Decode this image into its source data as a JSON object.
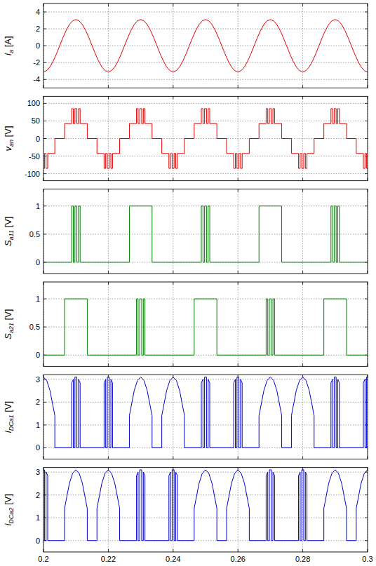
{
  "chart_data": [
    {
      "type": "line",
      "ylabel": "ia [A]",
      "color": "#e00000",
      "grid": true,
      "tick_labels": "y",
      "xlim": [
        0.2,
        0.3
      ],
      "xticks": [
        0.2,
        0.22,
        0.24,
        0.26,
        0.28,
        0.3
      ],
      "ylim": [
        -5,
        5
      ],
      "yticks": [
        -4,
        -2,
        0,
        2,
        4
      ],
      "x": [
        0.2,
        0.201,
        0.202,
        0.203,
        0.204,
        0.205,
        0.206,
        0.207,
        0.208,
        0.209,
        0.21,
        0.211,
        0.212,
        0.213,
        0.214,
        0.215,
        0.216,
        0.217,
        0.218,
        0.219,
        0.22,
        0.221,
        0.222,
        0.223,
        0.224,
        0.225,
        0.226,
        0.227,
        0.228,
        0.229,
        0.23,
        0.231,
        0.232,
        0.233,
        0.234,
        0.235,
        0.236,
        0.237,
        0.238,
        0.239,
        0.24,
        0.241,
        0.242,
        0.243,
        0.244,
        0.245,
        0.246,
        0.247,
        0.248,
        0.249,
        0.25,
        0.251,
        0.252,
        0.253,
        0.254,
        0.255,
        0.256,
        0.257,
        0.258,
        0.259,
        0.26,
        0.261,
        0.262,
        0.263,
        0.264,
        0.265,
        0.266,
        0.267,
        0.268,
        0.269,
        0.27,
        0.271,
        0.272,
        0.273,
        0.274,
        0.275,
        0.276,
        0.277,
        0.278,
        0.279,
        0.28,
        0.281,
        0.282,
        0.283,
        0.284,
        0.285,
        0.286,
        0.287,
        0.288,
        0.289,
        0.29,
        0.291,
        0.292,
        0.293,
        0.294,
        0.295,
        0.296,
        0.297,
        0.298,
        0.299,
        0.3
      ],
      "values": [
        -3.1,
        -2.95,
        -2.51,
        -1.82,
        -0.96,
        0,
        0.96,
        1.82,
        2.51,
        2.95,
        3.1,
        2.95,
        2.51,
        1.82,
        0.96,
        0,
        -0.96,
        -1.82,
        -2.51,
        -2.95,
        -3.1,
        -2.95,
        -2.51,
        -1.82,
        -0.96,
        0,
        0.96,
        1.82,
        2.51,
        2.95,
        3.1,
        2.95,
        2.51,
        1.82,
        0.96,
        0,
        -0.96,
        -1.82,
        -2.51,
        -2.95,
        -3.1,
        -2.95,
        -2.51,
        -1.82,
        -0.96,
        0,
        0.96,
        1.82,
        2.51,
        2.95,
        3.1,
        2.95,
        2.51,
        1.82,
        0.96,
        0,
        -0.96,
        -1.82,
        -2.51,
        -2.95,
        -3.1,
        -2.95,
        -2.51,
        -1.82,
        -0.96,
        0,
        0.96,
        1.82,
        2.51,
        2.95,
        3.1,
        2.95,
        2.51,
        1.82,
        0.96,
        0,
        -0.96,
        -1.82,
        -2.51,
        -2.95,
        -3.1,
        -2.95,
        -2.51,
        -1.82,
        -0.96,
        0,
        0.96,
        1.82,
        2.51,
        2.95,
        3.1,
        2.95,
        2.51,
        1.82,
        0.96,
        0,
        -0.96,
        -1.82,
        -2.51,
        -2.95,
        -3.1
      ]
    },
    {
      "type": "line",
      "line_style": "steps",
      "ylabel": "van [V]",
      "color": "#e00000",
      "grid": true,
      "tick_labels": "y",
      "xlim": [
        0.2,
        0.3
      ],
      "xticks": [
        0.2,
        0.22,
        0.24,
        0.26,
        0.28,
        0.3
      ],
      "ylim": [
        -120,
        120
      ],
      "yticks": [
        -100,
        -50,
        0,
        50,
        100
      ],
      "x": [
        0.2,
        0.2003,
        0.2008,
        0.2013,
        0.2035,
        0.2065,
        0.2087,
        0.2092,
        0.2097,
        0.2103,
        0.2108,
        0.2113,
        0.2135,
        0.2165,
        0.2187,
        0.2192,
        0.2197,
        0.2203,
        0.2208,
        0.2213,
        0.2235,
        0.2265,
        0.2287,
        0.2292,
        0.2297,
        0.2303,
        0.2308,
        0.2313,
        0.2335,
        0.2365,
        0.2387,
        0.2392,
        0.2397,
        0.2403,
        0.2408,
        0.2413,
        0.2435,
        0.2465,
        0.2487,
        0.2492,
        0.2497,
        0.2503,
        0.2508,
        0.2513,
        0.2535,
        0.2565,
        0.2587,
        0.2592,
        0.2597,
        0.2603,
        0.2608,
        0.2613,
        0.2635,
        0.2665,
        0.2687,
        0.2692,
        0.2697,
        0.2703,
        0.2708,
        0.2713,
        0.2735,
        0.2765,
        0.2787,
        0.2792,
        0.2797,
        0.2803,
        0.2808,
        0.2813,
        0.2835,
        0.2865,
        0.2887,
        0.2892,
        0.2897,
        0.2903,
        0.2908,
        0.2913,
        0.2935,
        0.2965,
        0.2987,
        0.2992,
        0.2997,
        0.3
      ],
      "values": [
        -85,
        -42.5,
        -85,
        -42.5,
        0,
        42.5,
        85,
        42.5,
        85,
        42.5,
        85,
        42.5,
        0,
        -42.5,
        -85,
        -42.5,
        -85,
        -42.5,
        -85,
        -42.5,
        0,
        42.5,
        85,
        42.5,
        85,
        42.5,
        85,
        42.5,
        0,
        -42.5,
        -85,
        -42.5,
        -85,
        -42.5,
        -85,
        -42.5,
        0,
        42.5,
        85,
        42.5,
        85,
        42.5,
        85,
        42.5,
        0,
        -42.5,
        -85,
        -42.5,
        -85,
        -42.5,
        -85,
        -42.5,
        0,
        42.5,
        85,
        42.5,
        85,
        42.5,
        85,
        42.5,
        0,
        -42.5,
        -85,
        -42.5,
        -85,
        -42.5,
        -85,
        -42.5,
        0,
        42.5,
        85,
        42.5,
        85,
        42.5,
        85,
        42.5,
        0,
        -42.5,
        -85,
        -42.5,
        -85,
        -85
      ]
    },
    {
      "type": "line",
      "line_style": "steps",
      "ylabel": "Sa11 [V]",
      "color": "#008000",
      "grid": true,
      "tick_labels": "y",
      "xlim": [
        0.2,
        0.3
      ],
      "xticks": [
        0.2,
        0.22,
        0.24,
        0.26,
        0.28,
        0.3
      ],
      "ylim": [
        -0.2,
        1.3
      ],
      "yticks": [
        0,
        0.5,
        1
      ],
      "x": [
        0.2,
        0.2087,
        0.2092,
        0.2097,
        0.2103,
        0.2108,
        0.2113,
        0.2265,
        0.2335,
        0.2487,
        0.2492,
        0.2497,
        0.2503,
        0.2508,
        0.2513,
        0.2665,
        0.2735,
        0.2887,
        0.2892,
        0.2897,
        0.2903,
        0.2908,
        0.2913,
        0.3
      ],
      "values": [
        0,
        1,
        0,
        1,
        0,
        1,
        0,
        1,
        0,
        1,
        0,
        1,
        0,
        1,
        0,
        1,
        0,
        1,
        0,
        1,
        0,
        1,
        0,
        0
      ]
    },
    {
      "type": "line",
      "line_style": "steps",
      "ylabel": "Sa21 [V]",
      "color": "#008000",
      "grid": true,
      "tick_labels": "y",
      "xlim": [
        0.2,
        0.3
      ],
      "xticks": [
        0.2,
        0.22,
        0.24,
        0.26,
        0.28,
        0.3
      ],
      "ylim": [
        -0.2,
        1.3
      ],
      "yticks": [
        0,
        0.5,
        1
      ],
      "x": [
        0.2,
        0.2065,
        0.2135,
        0.2287,
        0.2292,
        0.2297,
        0.2303,
        0.2308,
        0.2313,
        0.2465,
        0.2535,
        0.2687,
        0.2692,
        0.2697,
        0.2703,
        0.2708,
        0.2713,
        0.2865,
        0.2935,
        0.3
      ],
      "values": [
        0,
        1,
        0,
        1,
        0,
        1,
        0,
        1,
        0,
        1,
        0,
        1,
        0,
        1,
        0,
        1,
        0,
        1,
        0,
        0
      ]
    },
    {
      "type": "line",
      "ylabel": "iDCa1 [V]",
      "color": "#0000cd",
      "grid": true,
      "tick_labels": "y",
      "xlim": [
        0.2,
        0.3
      ],
      "xticks": [
        0.2,
        0.22,
        0.24,
        0.26,
        0.28,
        0.3
      ],
      "ylim": [
        -0.5,
        3.2
      ],
      "yticks": [
        0,
        1,
        2,
        3
      ],
      "x": [
        0.2,
        0.201,
        0.202,
        0.2035,
        0.2035,
        0.2087,
        0.2087,
        0.2092,
        0.2092,
        0.2097,
        0.2097,
        0.2103,
        0.2103,
        0.2108,
        0.2108,
        0.2113,
        0.2113,
        0.2187,
        0.2187,
        0.2192,
        0.2192,
        0.2197,
        0.2197,
        0.2203,
        0.2203,
        0.2208,
        0.2208,
        0.2213,
        0.2213,
        0.2265,
        0.2265,
        0.228,
        0.229,
        0.23,
        0.231,
        0.232,
        0.2335,
        0.2335,
        0.2365,
        0.2365,
        0.238,
        0.239,
        0.24,
        0.241,
        0.242,
        0.2435,
        0.2435,
        0.2487,
        0.2487,
        0.2492,
        0.2492,
        0.2497,
        0.2497,
        0.2503,
        0.2503,
        0.2508,
        0.2508,
        0.2513,
        0.2513,
        0.2587,
        0.2587,
        0.2592,
        0.2592,
        0.2597,
        0.2597,
        0.2603,
        0.2603,
        0.2608,
        0.2608,
        0.2613,
        0.2613,
        0.2665,
        0.2665,
        0.268,
        0.269,
        0.27,
        0.271,
        0.272,
        0.2735,
        0.2735,
        0.2765,
        0.2765,
        0.278,
        0.279,
        0.28,
        0.281,
        0.282,
        0.2835,
        0.2835,
        0.2887,
        0.2887,
        0.2892,
        0.2892,
        0.2897,
        0.2897,
        0.2903,
        0.2903,
        0.2908,
        0.2908,
        0.2913,
        0.2913,
        0.2987,
        0.2987,
        0.2992,
        0.2992,
        0.2997,
        0.2997,
        0.3
      ],
      "values": [
        3.1,
        2.95,
        2.51,
        1.41,
        0,
        0,
        2.85,
        3,
        0,
        0,
        3.1,
        3.1,
        0,
        0,
        3,
        2.85,
        0,
        0,
        2.85,
        3,
        0,
        0,
        3.1,
        3.1,
        0,
        0,
        3,
        2.85,
        0,
        0,
        1.41,
        2.51,
        2.95,
        3.1,
        2.95,
        2.51,
        1.41,
        0,
        0,
        1.41,
        2.51,
        2.95,
        3.1,
        2.95,
        2.51,
        1.41,
        0,
        0,
        2.85,
        3,
        0,
        0,
        3.1,
        3.1,
        0,
        0,
        3,
        2.85,
        0,
        0,
        2.85,
        3,
        0,
        0,
        3.1,
        3.1,
        0,
        0,
        3,
        2.85,
        0,
        0,
        1.41,
        2.51,
        2.95,
        3.1,
        2.95,
        2.51,
        1.41,
        0,
        0,
        1.41,
        2.51,
        2.95,
        3.1,
        2.95,
        2.51,
        1.41,
        0,
        0,
        2.85,
        3,
        0,
        0,
        3.1,
        3.1,
        0,
        0,
        3,
        2.85,
        0,
        0,
        2.85,
        3,
        0,
        0,
        3.1,
        3.1
      ]
    },
    {
      "type": "line",
      "ylabel": "iDCa2 [V]",
      "color": "#0000cd",
      "grid": true,
      "xlim": [
        0.2,
        0.3
      ],
      "xticks": [
        0.2,
        0.22,
        0.24,
        0.26,
        0.28,
        0.3
      ],
      "ylim": [
        -0.5,
        3.2
      ],
      "yticks": [
        0,
        1,
        2,
        3
      ],
      "x": [
        0.2,
        0.2003,
        0.2003,
        0.2008,
        0.2008,
        0.2013,
        0.2013,
        0.2065,
        0.2065,
        0.208,
        0.209,
        0.21,
        0.211,
        0.212,
        0.2135,
        0.2135,
        0.2165,
        0.2165,
        0.218,
        0.219,
        0.22,
        0.221,
        0.222,
        0.2235,
        0.2235,
        0.2287,
        0.2287,
        0.2292,
        0.2292,
        0.2297,
        0.2297,
        0.2303,
        0.2303,
        0.2308,
        0.2308,
        0.2313,
        0.2313,
        0.2387,
        0.2387,
        0.2392,
        0.2392,
        0.2397,
        0.2397,
        0.2403,
        0.2403,
        0.2408,
        0.2408,
        0.2413,
        0.2413,
        0.2465,
        0.2465,
        0.248,
        0.249,
        0.25,
        0.251,
        0.252,
        0.2535,
        0.2535,
        0.2565,
        0.2565,
        0.258,
        0.259,
        0.26,
        0.261,
        0.262,
        0.2635,
        0.2635,
        0.2687,
        0.2687,
        0.2692,
        0.2692,
        0.2697,
        0.2697,
        0.2703,
        0.2703,
        0.2708,
        0.2708,
        0.2713,
        0.2713,
        0.2787,
        0.2787,
        0.2792,
        0.2792,
        0.2797,
        0.2797,
        0.2803,
        0.2803,
        0.2808,
        0.2808,
        0.2813,
        0.2813,
        0.2865,
        0.2865,
        0.288,
        0.289,
        0.29,
        0.291,
        0.292,
        0.2935,
        0.2935,
        0.2965,
        0.2965,
        0.298,
        0.299,
        0.3
      ],
      "values": [
        3.1,
        3.1,
        0,
        0,
        3,
        2.85,
        0,
        0,
        1.41,
        2.51,
        2.95,
        3.1,
        2.95,
        2.51,
        1.41,
        0,
        0,
        1.41,
        2.51,
        2.95,
        3.1,
        2.95,
        2.51,
        1.41,
        0,
        0,
        2.85,
        3,
        0,
        0,
        3.1,
        3.1,
        0,
        0,
        3,
        2.85,
        0,
        0,
        2.85,
        3,
        0,
        0,
        3.1,
        3.1,
        0,
        0,
        3,
        2.85,
        0,
        0,
        1.41,
        2.51,
        2.95,
        3.1,
        2.95,
        2.51,
        1.41,
        0,
        0,
        1.41,
        2.51,
        2.95,
        3.1,
        2.95,
        2.51,
        1.41,
        0,
        0,
        2.85,
        3,
        0,
        0,
        3.1,
        3.1,
        0,
        0,
        3,
        2.85,
        0,
        0,
        2.85,
        3,
        0,
        0,
        3.1,
        3.1,
        0,
        0,
        3,
        2.85,
        0,
        0,
        1.41,
        2.51,
        2.95,
        3.1,
        2.95,
        2.51,
        1.41,
        0,
        0,
        1.41,
        2.51,
        2.95,
        3.1
      ]
    }
  ]
}
